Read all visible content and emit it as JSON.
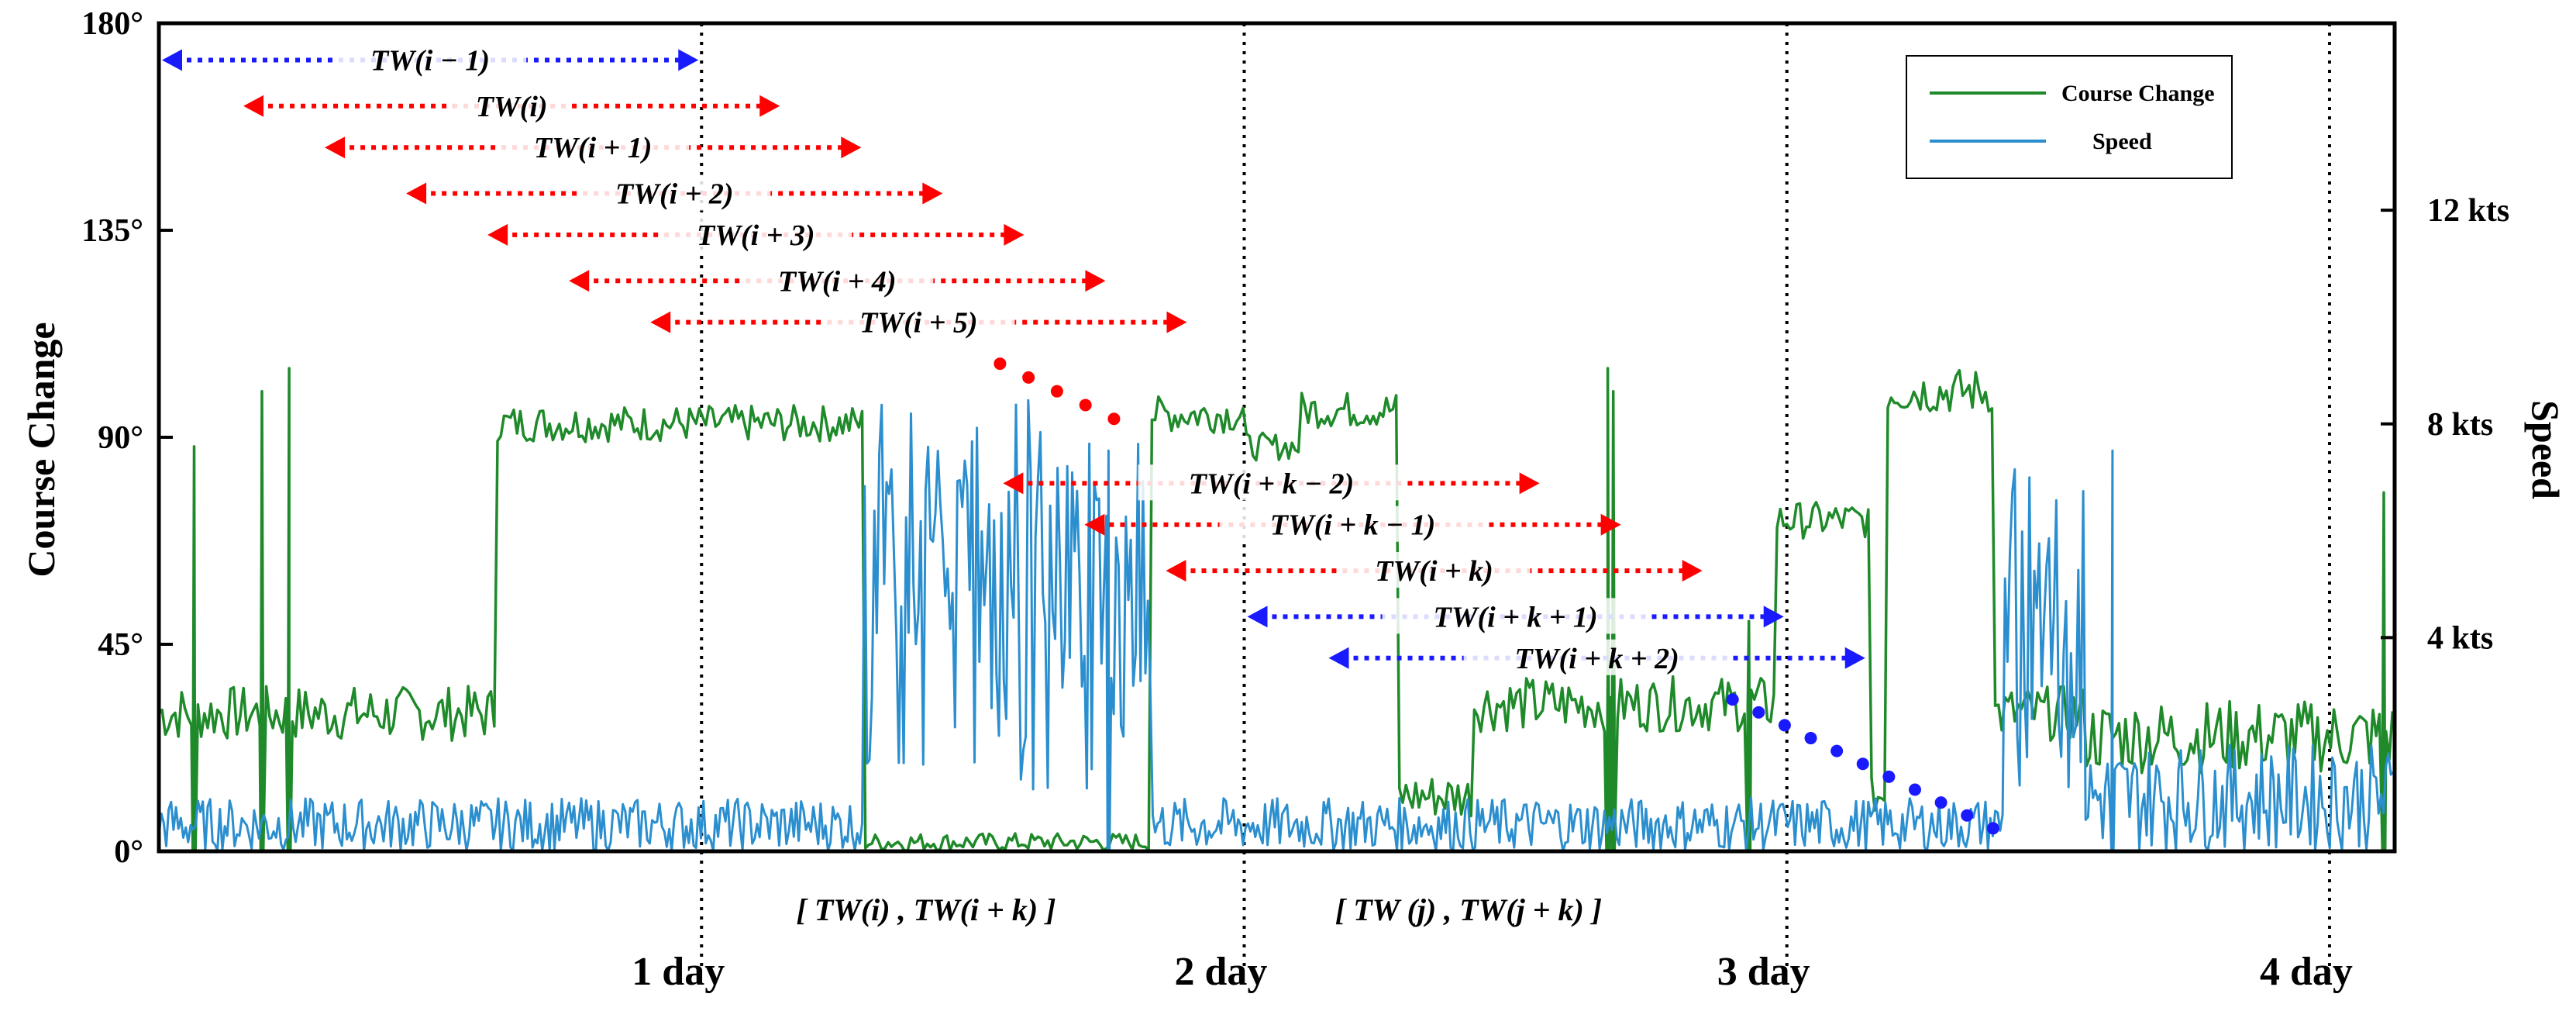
{
  "chart_data": {
    "type": "line",
    "title": "",
    "ylabel_left": "Course Change",
    "ylabel_right": "Speed",
    "xlabel": "",
    "x_range_days": [
      0,
      4.12
    ],
    "ylim_left": [
      0,
      180
    ],
    "ylim_right_kts": [
      0,
      15.5
    ],
    "left_ticks": [
      "0°",
      "45°",
      "90°",
      "135°",
      "180°"
    ],
    "left_tick_values": [
      0,
      45,
      90,
      135,
      180
    ],
    "right_ticks": [
      "4 kts",
      "8 kts",
      "12 kts"
    ],
    "right_tick_values": [
      4,
      8,
      12
    ],
    "x_ticks": [
      "1 day",
      "2 day",
      "3 day",
      "4 day"
    ],
    "x_tick_values": [
      1,
      2,
      3,
      4
    ],
    "colors": {
      "course": "#1f8a2a",
      "speed": "#2b8fcf",
      "red": "#ff0000",
      "blue": "#1a1aff"
    },
    "legend": {
      "placement": "top-right",
      "items": [
        "Course Change",
        "Speed"
      ]
    },
    "series": [
      {
        "name": "Course Change",
        "axis": "left",
        "segments": [
          {
            "x0": 0.0,
            "x1": 0.62,
            "base": 30,
            "noise": 6
          },
          {
            "x0": 0.62,
            "x1": 1.3,
            "base": 93,
            "noise": 4
          },
          {
            "x0": 1.3,
            "x1": 1.83,
            "base": 2,
            "noise": 2
          },
          {
            "x0": 1.83,
            "x1": 2.0,
            "base": 95,
            "noise": 4
          },
          {
            "x0": 2.0,
            "x1": 2.1,
            "base": 88,
            "noise": 3
          },
          {
            "x0": 2.1,
            "x1": 2.28,
            "base": 96,
            "noise": 4
          },
          {
            "x0": 2.28,
            "x1": 2.42,
            "base": 12,
            "noise": 5
          },
          {
            "x0": 2.42,
            "x1": 2.98,
            "base": 32,
            "noise": 6
          },
          {
            "x0": 2.98,
            "x1": 3.15,
            "base": 72,
            "noise": 4
          },
          {
            "x0": 3.15,
            "x1": 3.18,
            "base": 12,
            "noise": 4
          },
          {
            "x0": 3.18,
            "x1": 3.38,
            "base": 100,
            "noise": 5
          },
          {
            "x0": 3.38,
            "x1": 3.55,
            "base": 30,
            "noise": 6
          },
          {
            "x0": 3.55,
            "x1": 4.12,
            "base": 25,
            "noise": 8
          }
        ],
        "spikes": [
          {
            "x": 0.065,
            "y": 88
          },
          {
            "x": 0.19,
            "y": 100
          },
          {
            "x": 0.24,
            "y": 105
          },
          {
            "x": 2.67,
            "y": 105
          },
          {
            "x": 2.68,
            "y": 100
          },
          {
            "x": 2.93,
            "y": 50
          },
          {
            "x": 4.1,
            "y": 78
          }
        ]
      },
      {
        "name": "Speed",
        "axis": "right",
        "segments": [
          {
            "x0": 0.0,
            "x1": 1.3,
            "base": 0.5,
            "noise": 0.5
          },
          {
            "x0": 1.3,
            "x1": 1.83,
            "base": 4.0,
            "noise": 3.0
          },
          {
            "x0": 1.83,
            "x1": 3.4,
            "base": 0.5,
            "noise": 0.5
          },
          {
            "x0": 3.4,
            "x1": 3.55,
            "base": 4.0,
            "noise": 3.0
          },
          {
            "x0": 3.55,
            "x1": 4.12,
            "base": 1.0,
            "noise": 1.0
          }
        ],
        "spikes": [
          {
            "x": 1.75,
            "y": 7.5
          },
          {
            "x": 3.6,
            "y": 7.5
          }
        ]
      }
    ],
    "windows": [
      {
        "label": "TW(i − 1)",
        "color": "blue",
        "start": 0.0,
        "end": 1.0,
        "level": 172
      },
      {
        "label": "TW(i)",
        "color": "red",
        "start": 0.15,
        "end": 1.15,
        "level": 162
      },
      {
        "label": "TW(i + 1)",
        "color": "red",
        "start": 0.3,
        "end": 1.3,
        "level": 153
      },
      {
        "label": "TW(i + 2)",
        "color": "red",
        "start": 0.45,
        "end": 1.45,
        "level": 143
      },
      {
        "label": "TW(i + 3)",
        "color": "red",
        "start": 0.6,
        "end": 1.6,
        "level": 134
      },
      {
        "label": "TW(i + 4)",
        "color": "red",
        "start": 0.75,
        "end": 1.75,
        "level": 124
      },
      {
        "label": "TW(i + 5)",
        "color": "red",
        "start": 0.9,
        "end": 1.9,
        "level": 115
      },
      {
        "label": "TW(i + k − 2)",
        "color": "red",
        "start": 1.55,
        "end": 2.55,
        "level": 80
      },
      {
        "label": "TW(i + k − 1)",
        "color": "red",
        "start": 1.7,
        "end": 2.7,
        "level": 71
      },
      {
        "label": "TW(i + k)",
        "color": "red",
        "start": 1.85,
        "end": 2.85,
        "level": 61
      },
      {
        "label": "TW(i + k + 1)",
        "color": "blue",
        "start": 2.0,
        "end": 3.0,
        "level": 51
      },
      {
        "label": "TW(i + k + 2)",
        "color": "blue",
        "start": 2.15,
        "end": 3.15,
        "level": 42
      }
    ],
    "ellipsis_dots": [
      {
        "color": "red",
        "from": [
          1.55,
          106
        ],
        "to": [
          1.76,
          94
        ],
        "count": 5
      },
      {
        "color": "blue",
        "from": [
          2.9,
          33
        ],
        "to": [
          3.38,
          5
        ],
        "count": 11
      }
    ],
    "annotations": [
      "[ TW(i)  ,  TW(i + k) ]",
      "[ TW (j)  ,  TW(j + k) ]"
    ]
  }
}
